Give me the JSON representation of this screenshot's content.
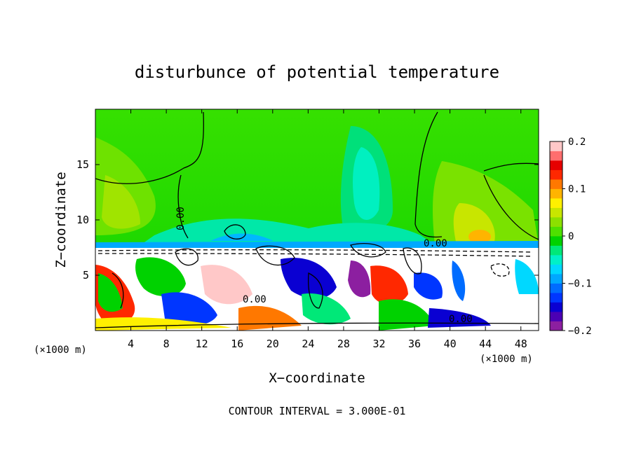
{
  "chart_data": {
    "type": "heatmap",
    "title": "disturbunce of potential temperature",
    "xlabel": "X−coordinate",
    "ylabel": "Z−coordinate",
    "x_unit_left": "(×1000 m)",
    "x_unit_right": "(×1000 m)",
    "xlim": [
      0,
      50
    ],
    "ylim": [
      0,
      20
    ],
    "xticks": [
      4,
      8,
      12,
      16,
      20,
      24,
      28,
      32,
      36,
      40,
      44,
      48
    ],
    "yticks": [
      5,
      10,
      15
    ],
    "colorbar": {
      "range": [
        -0.2,
        0.2
      ],
      "ticks": [
        {
          "value": 0.2,
          "label": "0.2"
        },
        {
          "value": 0.1,
          "label": "0.1"
        },
        {
          "value": 0,
          "label": "0"
        },
        {
          "value": -0.1,
          "label": "−0.1"
        },
        {
          "value": -0.2,
          "label": "−0.2"
        }
      ],
      "colors": [
        "#8c1fa0",
        "#4b00b4",
        "#0a00d2",
        "#0036ff",
        "#006cff",
        "#00a8ff",
        "#00d8ff",
        "#00f0c8",
        "#00e878",
        "#00d200",
        "#4ee000",
        "#8ce000",
        "#c8e600",
        "#fff000",
        "#ffb400",
        "#ff7800",
        "#ff2800",
        "#e60000",
        "#ff6e6e",
        "#ffc8c8"
      ]
    },
    "contour_labels": [
      "0.00",
      "0.00",
      "0.00",
      "0.00"
    ],
    "contour_interval_text": "CONTOUR INTERVAL =  3.000E-01"
  }
}
